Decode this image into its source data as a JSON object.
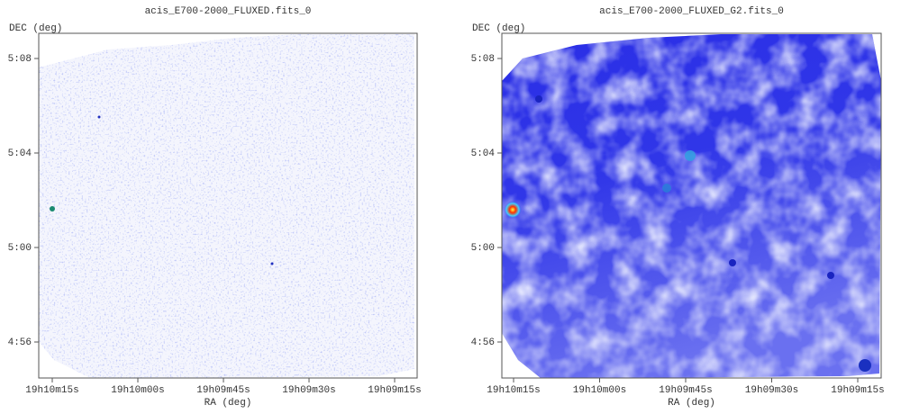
{
  "panels": [
    {
      "title": "acis_E700-2000_FLUXED.fits_0",
      "ylabel": "DEC (deg)",
      "xlabel": "RA (deg)",
      "yticks": [
        "5:08",
        "5:04",
        "5:00",
        "4:56"
      ],
      "xticks": [
        "19h10m15s",
        "19h10m00s",
        "19h09m45s",
        "19h09m30s",
        "19h09m15s"
      ]
    },
    {
      "title": "acis_E700-2000_FLUXED_G2.fits_0",
      "ylabel": "DEC (deg)",
      "xlabel": "RA (deg)",
      "yticks": [
        "5:08",
        "5:04",
        "5:00",
        "4:56"
      ],
      "xticks": [
        "19h10m15s",
        "19h10m00s",
        "19h09m45s",
        "19h09m30s",
        "19h09m15s"
      ]
    }
  ]
}
